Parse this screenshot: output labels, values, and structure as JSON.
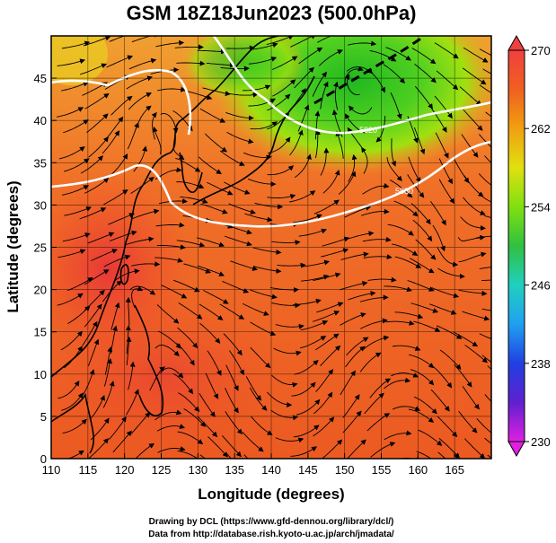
{
  "figure": {
    "title": "GSM 18Z18Jun2023 (500.0hPa)",
    "xlabel": "Longitude (degrees)",
    "ylabel": "Latitude (degrees)",
    "credit_line1": "Drawing by DCL (https://www.gfd-dennou.org/library/dcl/)",
    "credit_line2": "Data from http://database.rish.kyoto-u.ac.jp/arch/jmadata/"
  },
  "chart_data": {
    "type": "heatmap",
    "title": "GSM 18Z18Jun2023 (500.0hPa)",
    "xlabel": "Longitude (degrees)",
    "ylabel": "Latitude (degrees)",
    "xlim": [
      110,
      170
    ],
    "ylim": [
      0,
      50
    ],
    "x_ticks": [
      "110",
      "115",
      "120",
      "125",
      "130",
      "135",
      "140",
      "145",
      "150",
      "155",
      "160",
      "165"
    ],
    "y_ticks": [
      "0",
      "5",
      "10",
      "15",
      "20",
      "25",
      "30",
      "35",
      "40",
      "45"
    ],
    "grid": true,
    "colorbar": {
      "placement": "right",
      "range": [
        230,
        270
      ],
      "ticks": [
        "230",
        "238",
        "246",
        "254",
        "262",
        "270"
      ],
      "colors": [
        "#e020e0",
        "#6020d0",
        "#2040e0",
        "#20a0f0",
        "#20d0c0",
        "#30c040",
        "#80e010",
        "#e0e010",
        "#f0a010",
        "#f06020",
        "#f04040"
      ]
    },
    "contour_labels": [
      "5820",
      "5880"
    ],
    "cold_center": {
      "lon": 152,
      "lat": 47
    }
  }
}
